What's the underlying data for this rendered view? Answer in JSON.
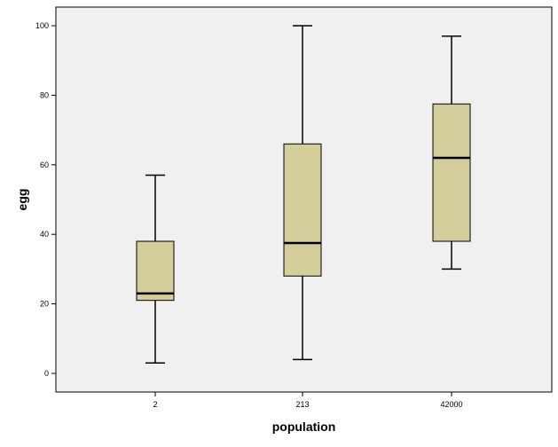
{
  "chart_data": {
    "type": "boxplot",
    "title": "",
    "xlabel": "population",
    "ylabel": "egg",
    "ylim": [
      -5,
      105
    ],
    "yticks": [
      0,
      20,
      40,
      60,
      80,
      100
    ],
    "grid": false,
    "categories": [
      "2",
      "213",
      "42000"
    ],
    "boxes": [
      {
        "category": "2",
        "min": 3,
        "q1": 21,
        "median": 23,
        "q3": 38,
        "max": 57
      },
      {
        "category": "213",
        "min": 4,
        "q1": 28,
        "median": 37.5,
        "q3": 66,
        "max": 100
      },
      {
        "category": "42000",
        "min": 30,
        "q1": 38,
        "median": 62,
        "q3": 77.5,
        "max": 97
      }
    ],
    "colors": {
      "plot_background": "#f0f0f0",
      "box_fill": "#d3ce9c",
      "stroke": "#000000"
    }
  }
}
